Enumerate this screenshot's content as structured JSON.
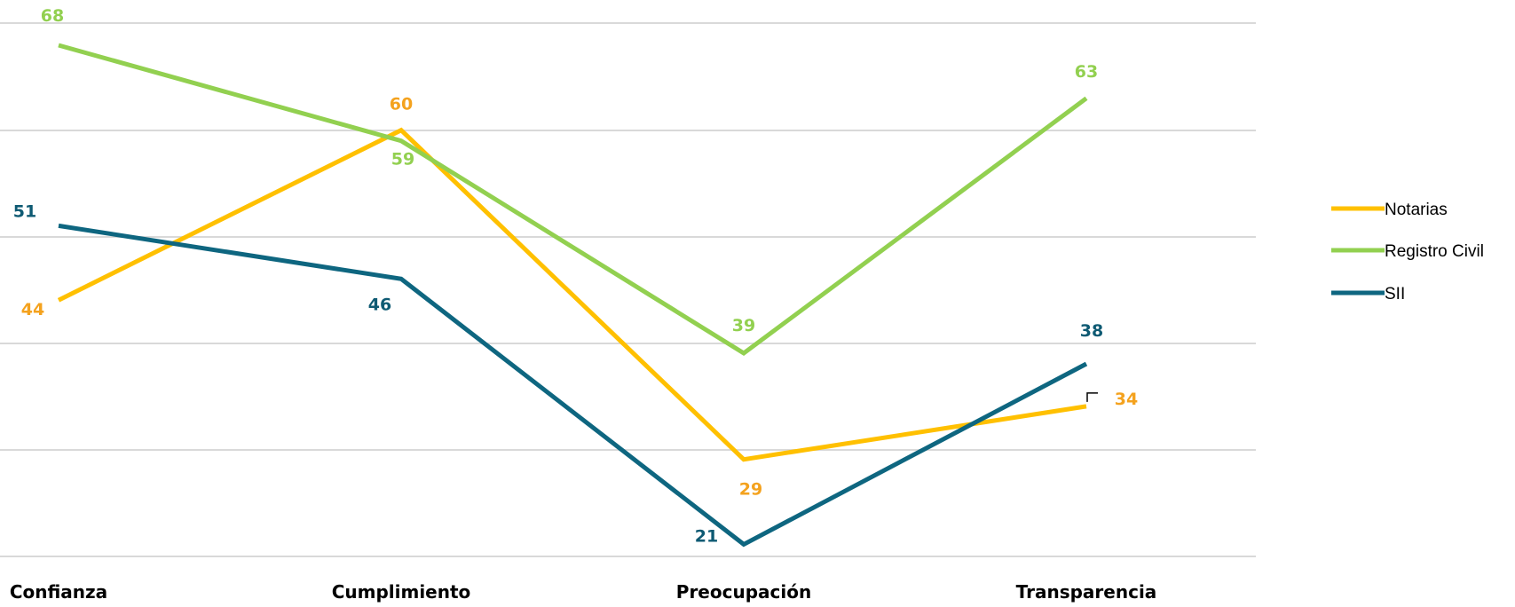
{
  "chart_data": {
    "type": "line",
    "title": "",
    "xlabel": "",
    "ylabel": "",
    "categories": [
      "Confianza",
      "Cumplimiento",
      "Preocupación",
      "Transparencia"
    ],
    "ylim": [
      15,
      70
    ],
    "grid": true,
    "legend_position": "right",
    "series": [
      {
        "name": "Notarias",
        "values": [
          44,
          60,
          29,
          34
        ],
        "color": "#FFC000",
        "label_color": "#F4A21E"
      },
      {
        "name": "Registro Civil",
        "values": [
          68,
          59,
          39,
          63
        ],
        "color": "#92D050",
        "label_color": "#92D050"
      },
      {
        "name": "SII",
        "values": [
          51,
          46,
          21,
          38
        ],
        "color": "#0E6680",
        "label_color": "#0E5A73"
      }
    ]
  }
}
